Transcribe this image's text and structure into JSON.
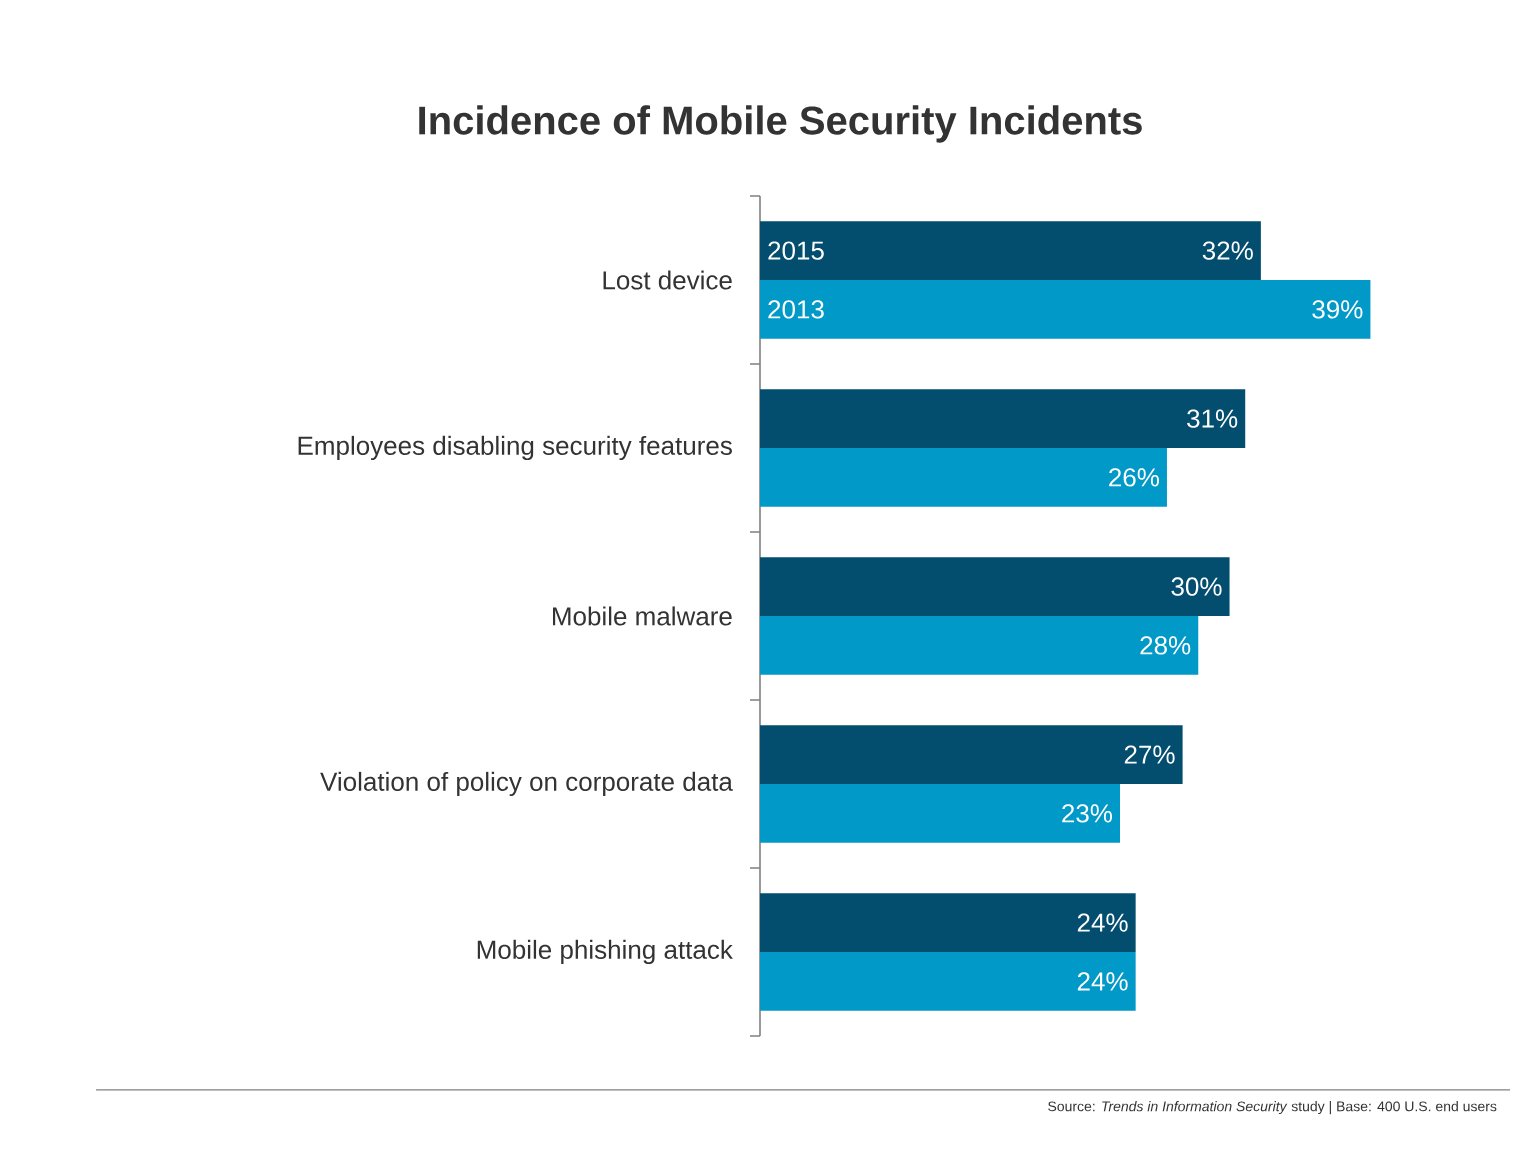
{
  "chart_data": {
    "type": "bar",
    "orientation": "horizontal",
    "title": "Incidence of Mobile Security Incidents",
    "categories": [
      "Lost device",
      "Employees disabling security features",
      "Mobile malware",
      "Violation of policy on corporate data",
      "Mobile phishing attack"
    ],
    "series": [
      {
        "name": "2015",
        "color": "#034d6f",
        "values": [
          32,
          31,
          30,
          27,
          24
        ],
        "value_labels": [
          "32%",
          "31%",
          "30%",
          "27%",
          "24%"
        ]
      },
      {
        "name": "2013",
        "color": "#0099c8",
        "values": [
          39,
          26,
          28,
          23,
          24
        ],
        "value_labels": [
          "39%",
          "26%",
          "28%",
          "23%",
          "24%"
        ]
      }
    ],
    "annotations": [
      "Source: *Trends in Information Security* study | Base: 400 U.S. end users"
    ]
  }
}
